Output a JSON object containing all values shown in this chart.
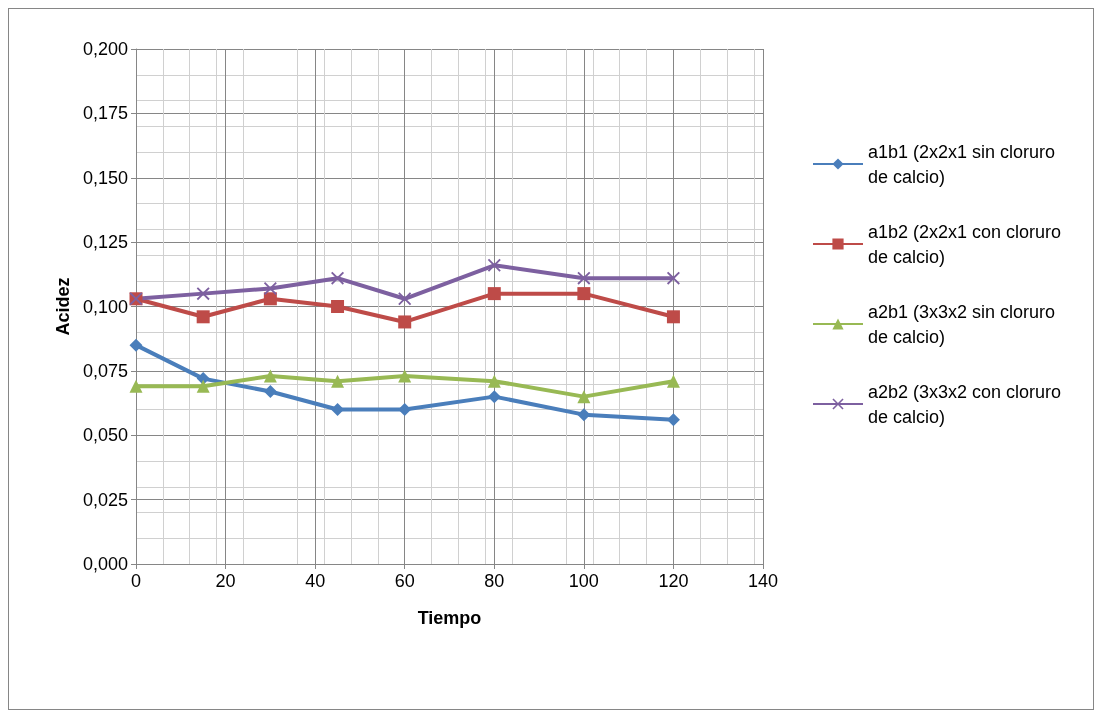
{
  "chart_data": {
    "type": "line",
    "xlabel": "Tiempo",
    "ylabel": "Acidez",
    "x": [
      0,
      15,
      30,
      45,
      60,
      80,
      100,
      120
    ],
    "series": [
      {
        "name": "a1b1 (2x2x1 sin cloruro de calcio)",
        "color": "#4a7ebb",
        "marker": "diamond",
        "values": [
          0.085,
          0.072,
          0.067,
          0.06,
          0.06,
          0.065,
          0.058,
          0.056
        ]
      },
      {
        "name": "a1b2 (2x2x1 con cloruro de calcio)",
        "color": "#be4b48",
        "marker": "square",
        "values": [
          0.103,
          0.096,
          0.103,
          0.1,
          0.094,
          0.105,
          0.105,
          0.096
        ]
      },
      {
        "name": "a2b1 (3x3x2 sin cloruro de calcio)",
        "color": "#98b954",
        "marker": "triangle",
        "values": [
          0.069,
          0.069,
          0.073,
          0.071,
          0.073,
          0.071,
          0.065,
          0.071
        ]
      },
      {
        "name": "a2b2 (3x3x2 con cloruro de calcio)",
        "color": "#7d60a0",
        "marker": "cross",
        "values": [
          0.103,
          0.105,
          0.107,
          0.111,
          0.103,
          0.116,
          0.111,
          0.111
        ]
      }
    ],
    "xlim": [
      0,
      140
    ],
    "xticks": [
      0,
      20,
      40,
      60,
      80,
      100,
      120,
      140
    ],
    "ylim": [
      0,
      0.2
    ],
    "yticks": [
      {
        "value": 0,
        "label": "0,000"
      },
      {
        "value": 0.025,
        "label": "0,025"
      },
      {
        "value": 0.05,
        "label": "0,050"
      },
      {
        "value": 0.075,
        "label": "0,075"
      },
      {
        "value": 0.1,
        "label": "0,100"
      },
      {
        "value": 0.125,
        "label": "0,125"
      },
      {
        "value": 0.15,
        "label": "0,150"
      },
      {
        "value": 0.175,
        "label": "0,175"
      },
      {
        "value": 0.2,
        "label": "0,200"
      }
    ],
    "grid": true,
    "legend": "right",
    "line_style": "solid"
  }
}
